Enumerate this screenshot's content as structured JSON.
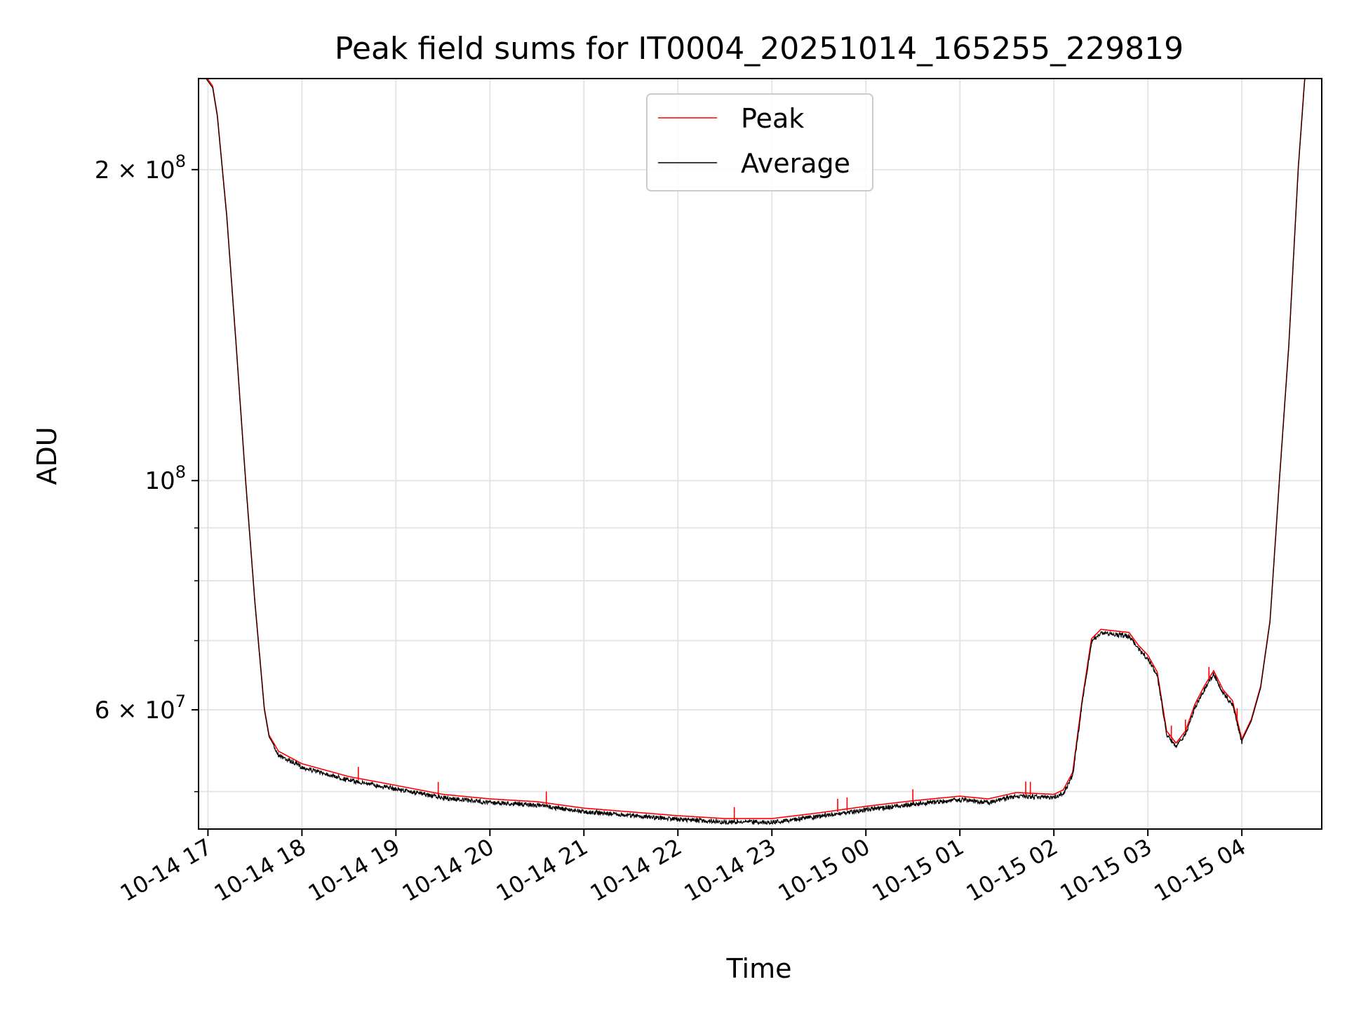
{
  "chart_data": {
    "type": "line",
    "title": "Peak field sums for IT0004_20251014_165255_229819",
    "xlabel": "Time",
    "ylabel": "ADU",
    "yscale": "log",
    "ylim": [
      46000000,
      245000000
    ],
    "xlim_hours": [
      -0.1,
      11.85
    ],
    "grid": true,
    "legend_position": "upper center",
    "x_tick_labels": [
      "10-14 17",
      "10-14 18",
      "10-14 19",
      "10-14 20",
      "10-14 21",
      "10-14 22",
      "10-14 23",
      "10-15 00",
      "10-15 01",
      "10-15 02",
      "10-15 03",
      "10-15 04"
    ],
    "y_ticks": [
      {
        "value": 200000000,
        "base": "2 × 10",
        "exp": "8"
      },
      {
        "value": 100000000,
        "base": "10",
        "exp": "8"
      },
      {
        "value": 60000000,
        "base": "6 × 10",
        "exp": "7"
      }
    ],
    "y_minor_ticks": [
      50000000,
      70000000,
      80000000,
      90000000
    ],
    "series": [
      {
        "name": "Peak",
        "color": "#ff0000",
        "offset_ratio": 1.004,
        "spike_hours": [
          1.6,
          2.45,
          3.6,
          5.6,
          6.7,
          6.8,
          7.5,
          8.7,
          8.75,
          10.25,
          10.4,
          10.65,
          10.95
        ]
      },
      {
        "name": "Average",
        "color": "#000000",
        "offset_ratio": 1.0,
        "noise_amplitude": 0.006,
        "anchors": [
          [
            -0.02,
            245000000
          ],
          [
            0.05,
            240000000
          ],
          [
            0.1,
            225000000
          ],
          [
            0.2,
            180000000
          ],
          [
            0.3,
            135000000
          ],
          [
            0.4,
            100000000
          ],
          [
            0.5,
            76000000
          ],
          [
            0.6,
            60000000
          ],
          [
            0.65,
            56500000
          ],
          [
            0.75,
            54500000
          ],
          [
            1.0,
            53000000
          ],
          [
            1.5,
            51500000
          ],
          [
            2.0,
            50500000
          ],
          [
            2.5,
            49500000
          ],
          [
            3.0,
            49000000
          ],
          [
            3.5,
            48700000
          ],
          [
            4.0,
            48000000
          ],
          [
            4.5,
            47600000
          ],
          [
            5.0,
            47200000
          ],
          [
            5.5,
            46900000
          ],
          [
            6.0,
            46900000
          ],
          [
            6.5,
            47500000
          ],
          [
            7.0,
            48200000
          ],
          [
            7.5,
            48800000
          ],
          [
            8.0,
            49300000
          ],
          [
            8.3,
            49000000
          ],
          [
            8.6,
            49700000
          ],
          [
            9.0,
            49500000
          ],
          [
            9.1,
            50000000
          ],
          [
            9.2,
            52000000
          ],
          [
            9.3,
            61000000
          ],
          [
            9.4,
            70000000
          ],
          [
            9.5,
            71500000
          ],
          [
            9.8,
            71000000
          ],
          [
            9.9,
            69000000
          ],
          [
            10.0,
            67500000
          ],
          [
            10.1,
            65000000
          ],
          [
            10.2,
            57000000
          ],
          [
            10.3,
            55500000
          ],
          [
            10.4,
            57000000
          ],
          [
            10.5,
            60500000
          ],
          [
            10.6,
            63000000
          ],
          [
            10.7,
            65200000
          ],
          [
            10.8,
            62500000
          ],
          [
            10.9,
            61000000
          ],
          [
            11.0,
            56000000
          ],
          [
            11.1,
            58500000
          ],
          [
            11.2,
            63000000
          ],
          [
            11.3,
            73000000
          ],
          [
            11.4,
            100000000
          ],
          [
            11.5,
            135000000
          ],
          [
            11.6,
            200000000
          ],
          [
            11.67,
            245000000
          ],
          [
            11.85,
            245000000
          ]
        ]
      }
    ]
  }
}
